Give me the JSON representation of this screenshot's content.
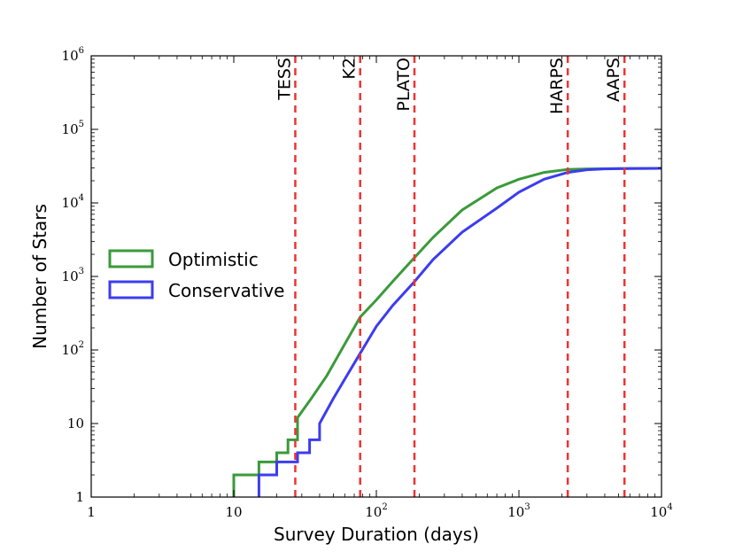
{
  "chart_data": {
    "type": "line",
    "title": "",
    "xlabel": "Survey Duration (days)",
    "ylabel": "Number of Stars",
    "xscale": "log",
    "yscale": "log",
    "xlim": [
      1,
      10000
    ],
    "ylim": [
      1,
      1000000
    ],
    "x_ticks": [
      {
        "value": 1,
        "base": "1",
        "exp": ""
      },
      {
        "value": 10,
        "base": "10",
        "exp": ""
      },
      {
        "value": 100,
        "base": "10",
        "exp": "2"
      },
      {
        "value": 1000,
        "base": "10",
        "exp": "3"
      },
      {
        "value": 10000,
        "base": "10",
        "exp": "4"
      }
    ],
    "y_ticks": [
      {
        "value": 1,
        "base": "1",
        "exp": ""
      },
      {
        "value": 10,
        "base": "10",
        "exp": ""
      },
      {
        "value": 100,
        "base": "10",
        "exp": "2"
      },
      {
        "value": 1000,
        "base": "10",
        "exp": "3"
      },
      {
        "value": 10000,
        "base": "10",
        "exp": "4"
      },
      {
        "value": 100000,
        "base": "10",
        "exp": "5"
      },
      {
        "value": 1000000,
        "base": "10",
        "exp": "6"
      }
    ],
    "grid": false,
    "legend_position": "center-left",
    "series": [
      {
        "name": "Optimistic",
        "color": "#3a9a3a",
        "x": [
          10,
          15,
          20,
          24,
          28,
          35,
          45,
          60,
          77,
          100,
          130,
          185,
          250,
          400,
          700,
          1000,
          1500,
          2200,
          3000,
          5000,
          10000
        ],
        "y": [
          2,
          3,
          4,
          6,
          12,
          22,
          45,
          120,
          280,
          480,
          850,
          1800,
          3400,
          8000,
          16000,
          21000,
          26000,
          28500,
          29000,
          29300,
          29500
        ]
      },
      {
        "name": "Conservative",
        "color": "#3c3cf0",
        "x": [
          15,
          20,
          28,
          34,
          40,
          50,
          60,
          77,
          100,
          130,
          185,
          250,
          400,
          700,
          1000,
          1500,
          2200,
          3000,
          4000,
          5500,
          10000
        ],
        "y": [
          2,
          3,
          4,
          6,
          10,
          22,
          40,
          90,
          210,
          400,
          850,
          1700,
          4000,
          8500,
          14000,
          21000,
          26000,
          28200,
          29000,
          29300,
          29500
        ]
      }
    ],
    "vlines": [
      {
        "label": "TESS",
        "x": 27,
        "color": "#ee3333"
      },
      {
        "label": "K2",
        "x": 77,
        "color": "#ee3333"
      },
      {
        "label": "PLATO",
        "x": 185,
        "color": "#ee3333"
      },
      {
        "label": "HARPS",
        "x": 2200,
        "color": "#ee3333"
      },
      {
        "label": "AAPS",
        "x": 5500,
        "color": "#ee3333"
      }
    ]
  }
}
